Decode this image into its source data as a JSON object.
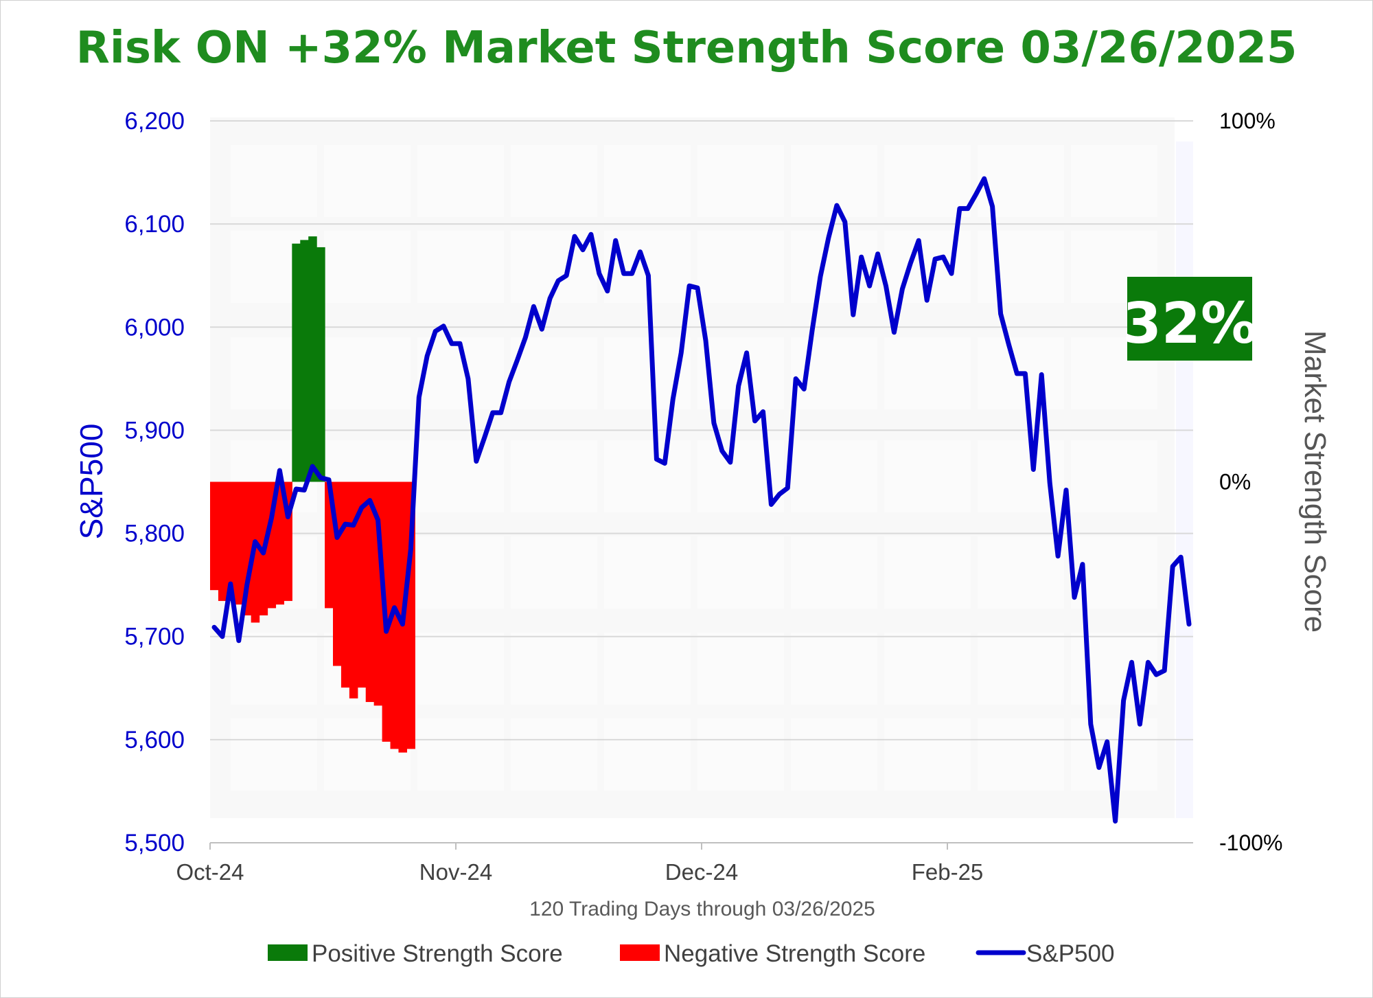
{
  "chart_data": {
    "type": "bar",
    "title": "Risk ON +32% Market Strength Score 03/26/2025",
    "xlabel": "120 Trading Days through 03/26/2025",
    "ylabel_left": "S&P500",
    "ylabel_right": "Market Strength Score",
    "x_ticks": [
      "Oct-24",
      "Nov-24",
      "Dec-24",
      "Feb-25"
    ],
    "x_tick_index": [
      0,
      30,
      60,
      90
    ],
    "ylim_left": [
      5500,
      6200
    ],
    "yticks_left": [
      "5,500",
      "5,600",
      "5,700",
      "5,800",
      "5,900",
      "6,000",
      "6,100",
      "6,200"
    ],
    "ylim_right": [
      -100,
      100
    ],
    "yticks_right": [
      "-100%",
      "0%",
      "100%"
    ],
    "grid": true,
    "legend_position": "bottom",
    "callout": "32%",
    "colors": {
      "title": "#1f8c1f",
      "positive": "#0a7a0a",
      "negative": "#ff0000",
      "sp500": "#0000cc",
      "left_axis": "#0000cc",
      "right_axis": "#555555",
      "badge": "#0a7a0a",
      "grid": "#d9d9d9"
    },
    "series": [
      {
        "name": "Positive Strength Score",
        "type": "bar",
        "axis": "right",
        "color": "#0a7a0a",
        "values": [
          0,
          0,
          0,
          0,
          0,
          0,
          0,
          0,
          0,
          0,
          66,
          67,
          68,
          65,
          0,
          0,
          0,
          0,
          0,
          0,
          0,
          0,
          0,
          0,
          0,
          0,
          0,
          0,
          0,
          0,
          0,
          0,
          0,
          0,
          0,
          0,
          0,
          0,
          0,
          0,
          0,
          0,
          0,
          0,
          0,
          0,
          0,
          0,
          0,
          0,
          0,
          0,
          0,
          0,
          0,
          0,
          0,
          0,
          0,
          0,
          0,
          0,
          0,
          0,
          0,
          0,
          0,
          0,
          0,
          0,
          0,
          0,
          0,
          0,
          0,
          0,
          0,
          0,
          0,
          0,
          0,
          0,
          0,
          0,
          0,
          0,
          0,
          0,
          0,
          0,
          0,
          0,
          0,
          0,
          0,
          0,
          0,
          0,
          0,
          0,
          0,
          0,
          0,
          0,
          0,
          0,
          0,
          0,
          0,
          0,
          0,
          0,
          0,
          0,
          0,
          0,
          0,
          0,
          0,
          0
        ]
      },
      {
        "name": "Negative Strength Score",
        "type": "bar",
        "axis": "right",
        "color": "#ff0000",
        "values": [
          -30,
          -33,
          -33,
          -34,
          -37,
          -39,
          -37,
          -35,
          -34,
          -33,
          0,
          0,
          0,
          0,
          -35,
          -51,
          -57,
          -60,
          -57,
          -61,
          -62,
          -72,
          -74,
          -75,
          -74,
          0,
          0,
          0,
          0,
          0,
          0,
          0,
          0,
          0,
          0,
          0,
          0,
          0,
          0,
          0,
          0,
          0,
          0,
          0,
          0,
          0,
          0,
          0,
          0,
          0,
          0,
          0,
          0,
          0,
          0,
          0,
          0,
          0,
          0,
          0,
          0,
          0,
          0,
          0,
          0,
          0,
          0,
          0,
          0,
          0,
          0,
          0,
          0,
          0,
          0,
          0,
          0,
          0,
          0,
          0,
          0,
          0,
          0,
          0,
          0,
          0,
          0,
          0,
          0,
          0,
          0,
          0,
          0,
          0,
          0,
          0,
          0,
          0,
          0,
          0,
          0,
          0,
          0,
          0,
          0,
          0,
          0,
          0,
          0,
          0,
          0,
          0,
          0,
          0,
          0,
          0,
          0,
          0,
          0,
          0
        ]
      },
      {
        "name": "S&P500",
        "type": "line",
        "axis": "left",
        "color": "#0000cc",
        "values": [
          5709,
          5700,
          5751,
          5696,
          5750,
          5792,
          5781,
          5815,
          5861,
          5816,
          5843,
          5842,
          5865,
          5854,
          5852,
          5796,
          5809,
          5808,
          5825,
          5832,
          5813,
          5705,
          5728,
          5712,
          5785,
          5932,
          5972,
          5996,
          6001,
          5984,
          5984,
          5950,
          5870,
          5893,
          5917,
          5917,
          5947,
          5968,
          5990,
          6020,
          5998,
          6028,
          6045,
          6050,
          6088,
          6075,
          6090,
          6052,
          6035,
          6084,
          6052,
          6052,
          6073,
          6050,
          5872,
          5868,
          5930,
          5975,
          6040,
          6038,
          5987,
          5907,
          5880,
          5869,
          5943,
          5975,
          5909,
          5918,
          5828,
          5838,
          5844,
          5950,
          5940,
          5997,
          6049,
          6087,
          6118,
          6102,
          6012,
          6068,
          6040,
          6071,
          6040,
          5995,
          6037,
          6062,
          6084,
          6026,
          6066,
          6068,
          6052,
          6115,
          6115,
          6129,
          6144,
          6117,
          6013,
          5983,
          5955,
          5955,
          5862,
          5954,
          5849,
          5778,
          5842,
          5738,
          5770,
          5615,
          5573,
          5598,
          5521,
          5638,
          5675,
          5615,
          5675,
          5663,
          5667,
          5768,
          5777,
          5712
        ]
      }
    ]
  },
  "legend": {
    "positive_label": "Positive Strength Score",
    "negative_label": "Negative Strength Score",
    "sp500_label": "S&P500"
  }
}
